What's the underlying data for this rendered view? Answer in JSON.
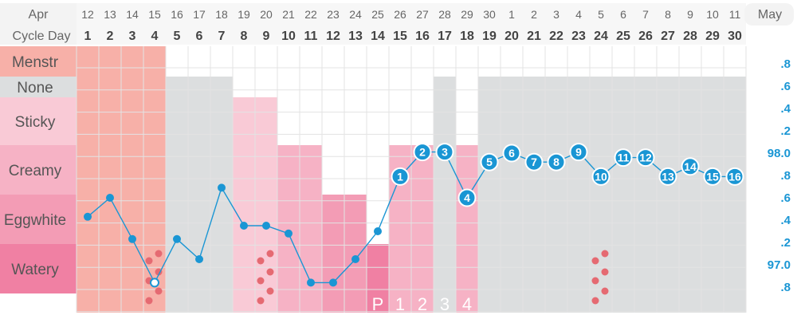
{
  "header": {
    "month_start": "Apr",
    "month_end": "May",
    "cycle_day_label": "Cycle Day",
    "dates": [
      "12",
      "13",
      "14",
      "15",
      "16",
      "17",
      "18",
      "19",
      "20",
      "21",
      "22",
      "23",
      "24",
      "25",
      "26",
      "27",
      "28",
      "29",
      "30",
      "1",
      "2",
      "3",
      "4",
      "5",
      "6",
      "7",
      "8",
      "9",
      "10",
      "11"
    ],
    "cycle_days": [
      "1",
      "2",
      "3",
      "4",
      "5",
      "6",
      "7",
      "8",
      "9",
      "10",
      "11",
      "12",
      "13",
      "14",
      "15",
      "16",
      "17",
      "18",
      "19",
      "20",
      "21",
      "22",
      "23",
      "24",
      "25",
      "26",
      "27",
      "28",
      "29",
      "30"
    ]
  },
  "categories": [
    {
      "label": "Menstr",
      "color": "#f7b0a8"
    },
    {
      "label": "None",
      "color": "#dcdedf"
    },
    {
      "label": "Sticky",
      "color": "#f9cad6"
    },
    {
      "label": "Creamy",
      "color": "#f6b2c5"
    },
    {
      "label": "Eggwhite",
      "color": "#f39cb5"
    },
    {
      "label": "Watery",
      "color": "#f080a3"
    }
  ],
  "temp_ticks": [
    ".8",
    ".6",
    ".4",
    ".2",
    "98.0",
    ".8",
    ".6",
    ".4",
    ".2",
    "97.0",
    ".8"
  ],
  "peak_labels": [
    "P",
    "1",
    "2",
    "3",
    "4"
  ],
  "colors": {
    "accent": "#1a96d4",
    "grid": "#e3e3e3",
    "dots": "#e56a72",
    "peak_label": "#ffffff",
    "tick_text": "#1a96d4",
    "header_text": "#666666"
  },
  "chart_data": {
    "type": "line",
    "x": [
      1,
      2,
      3,
      4,
      5,
      6,
      7,
      8,
      9,
      10,
      11,
      12,
      13,
      14,
      15,
      16,
      17,
      18,
      19,
      20,
      21,
      22,
      23,
      24,
      25,
      26,
      27,
      28,
      29,
      30
    ],
    "temperature": [
      97.43,
      97.6,
      97.23,
      96.84,
      97.23,
      97.05,
      97.69,
      97.35,
      97.35,
      97.28,
      96.84,
      96.84,
      97.05,
      97.3,
      97.79,
      98.01,
      98.01,
      97.6,
      97.92,
      98.0,
      97.92,
      97.92,
      98.01,
      97.79,
      97.96,
      97.96,
      97.79,
      97.88,
      97.79,
      97.79
    ],
    "coverline_labels": [
      null,
      null,
      null,
      null,
      null,
      null,
      null,
      null,
      null,
      null,
      null,
      null,
      null,
      null,
      "1",
      "2",
      "3",
      "4",
      "5",
      "6",
      "7",
      "8",
      "9",
      "10",
      "11",
      "12",
      "13",
      "14",
      "15",
      "16"
    ],
    "hollow_days": [
      4
    ],
    "y_ticks": [
      98.8,
      98.6,
      98.4,
      98.2,
      98.0,
      97.8,
      97.6,
      97.4,
      97.2,
      97.0,
      96.8
    ],
    "fluid_categories": [
      "Menstr",
      "None",
      "Sticky",
      "Creamy",
      "Eggwhite",
      "Watery"
    ],
    "fluid_by_day": [
      "Menstr",
      "Menstr",
      "Menstr",
      "Menstr",
      "None",
      "None",
      "None",
      "Sticky",
      "Sticky",
      "Creamy",
      "Creamy",
      "Eggwhite",
      "Eggwhite",
      "Watery",
      "Creamy",
      "Creamy",
      "None",
      "Creamy",
      "None",
      "None",
      "None",
      "None",
      "None",
      "None",
      "None",
      "None",
      "None",
      "None",
      "None",
      "None"
    ],
    "spotting_days": [
      4,
      9,
      24
    ],
    "peak_day": 14
  }
}
